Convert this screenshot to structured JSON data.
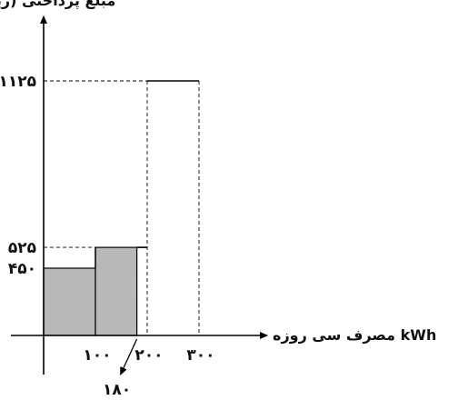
{
  "chart_data": {
    "type": "bar",
    "title": "",
    "xlabel": "مصرف سی روزه kWh",
    "ylabel": "مبلغ پرداختی (ریال)",
    "xlim": [
      -0.5,
      3.5
    ],
    "ylim": [
      0,
      1250
    ],
    "x_ticks": [
      {
        "value": 1,
        "label": "۱۰۰"
      },
      {
        "value": 2,
        "label": "۲۰۰"
      },
      {
        "value": 3,
        "label": "۳۰۰"
      }
    ],
    "y_ticks": [
      {
        "value": 450,
        "label": "۴۵۰"
      },
      {
        "value": 525,
        "label": "۵۲۵"
      },
      {
        "value": 1125,
        "label": "۱۱۲۵"
      }
    ],
    "bars": [
      {
        "from": 0,
        "to": 1,
        "value": 450,
        "shaded": true
      },
      {
        "from": 1,
        "to": 1.8,
        "value": 525,
        "shaded": true
      },
      {
        "from": 1.8,
        "to": 2,
        "value": 525,
        "shaded": false
      },
      {
        "from": 2,
        "to": 3,
        "value": 1125,
        "shaded": false
      }
    ],
    "annotation": {
      "x": 1.8,
      "label": "۱۸۰"
    },
    "grid": false
  },
  "colors": {
    "shaded": "#b8b8b8",
    "line": "#000000"
  }
}
